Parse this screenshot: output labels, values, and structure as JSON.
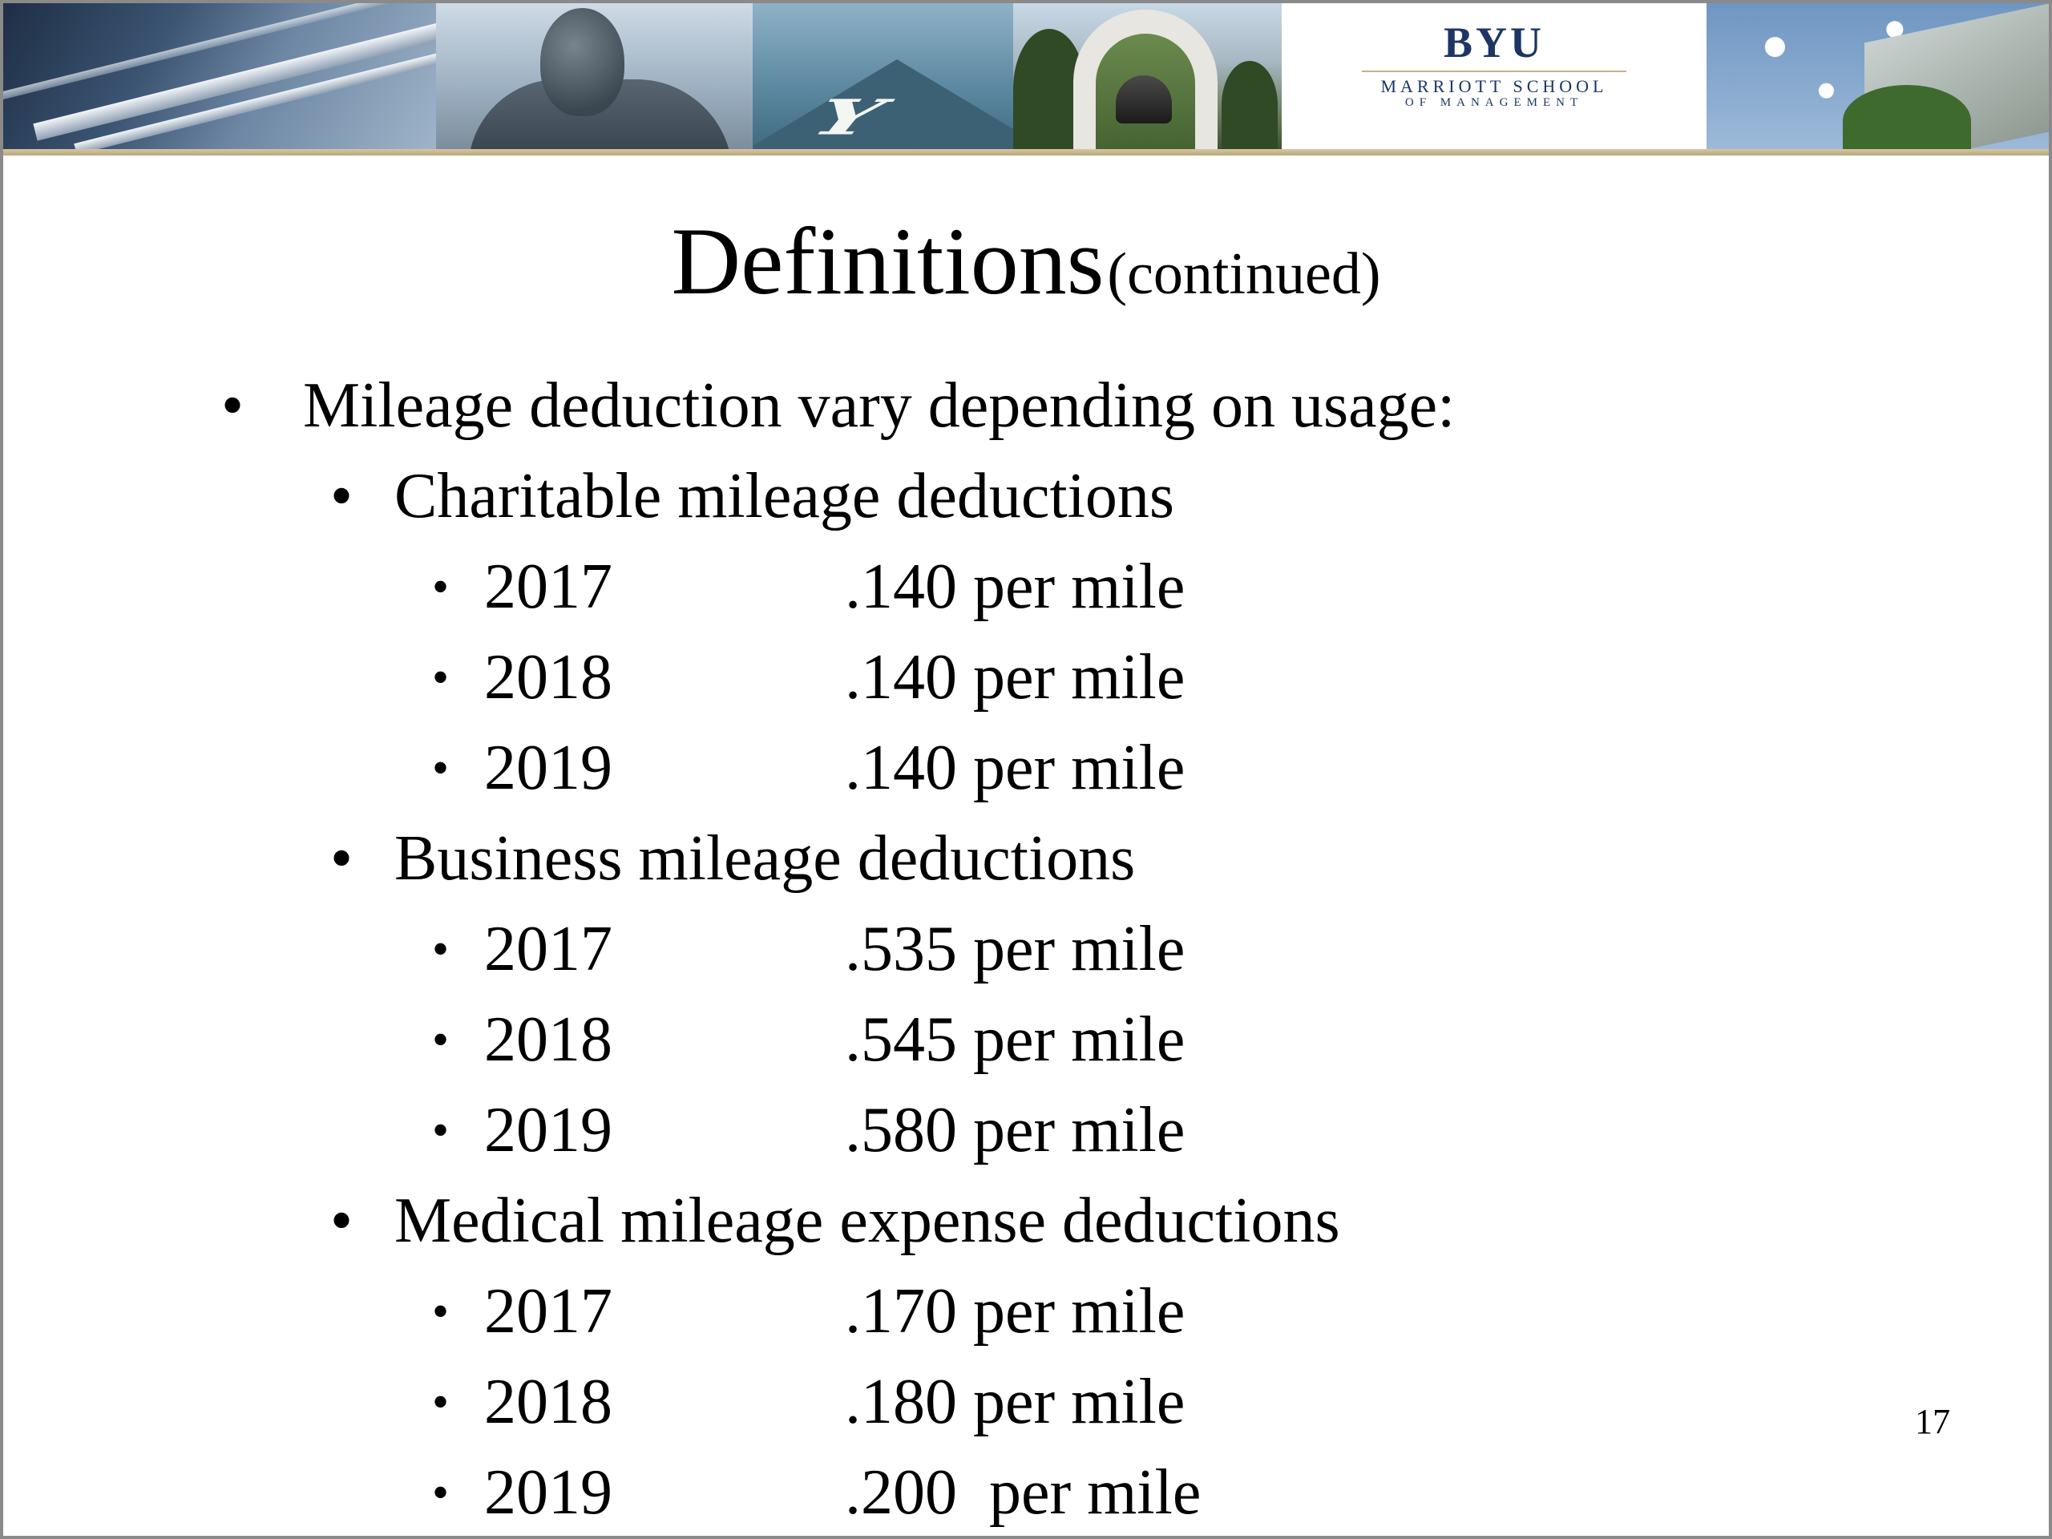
{
  "banner": {
    "logo_main": "BYU",
    "logo_sub": "MARRIOTT SCHOOL",
    "logo_sub2": "OF MANAGEMENT"
  },
  "title": {
    "main": "Definitions",
    "sub": "(continued)"
  },
  "bullet_char": "•",
  "intro": "Mileage deduction vary depending on usage:",
  "categories": [
    {
      "label": "Charitable mileage deductions",
      "rates": [
        {
          "year": "2017",
          "rate": ".140 per mile"
        },
        {
          "year": "2018",
          "rate": ".140 per mile"
        },
        {
          "year": "2019",
          "rate": ".140 per mile"
        }
      ]
    },
    {
      "label": "Business mileage deductions",
      "rates": [
        {
          "year": "2017",
          "rate": ".535 per mile"
        },
        {
          "year": "2018",
          "rate": ".545 per mile"
        },
        {
          "year": "2019",
          "rate": ".580 per mile"
        }
      ]
    },
    {
      "label": "Medical mileage expense deductions",
      "rates": [
        {
          "year": "2017",
          "rate": ".170 per mile"
        },
        {
          "year": "2018",
          "rate": ".180 per mile"
        },
        {
          "year": "2019",
          "rate": ".200  per mile"
        }
      ]
    }
  ],
  "page_number": "17"
}
